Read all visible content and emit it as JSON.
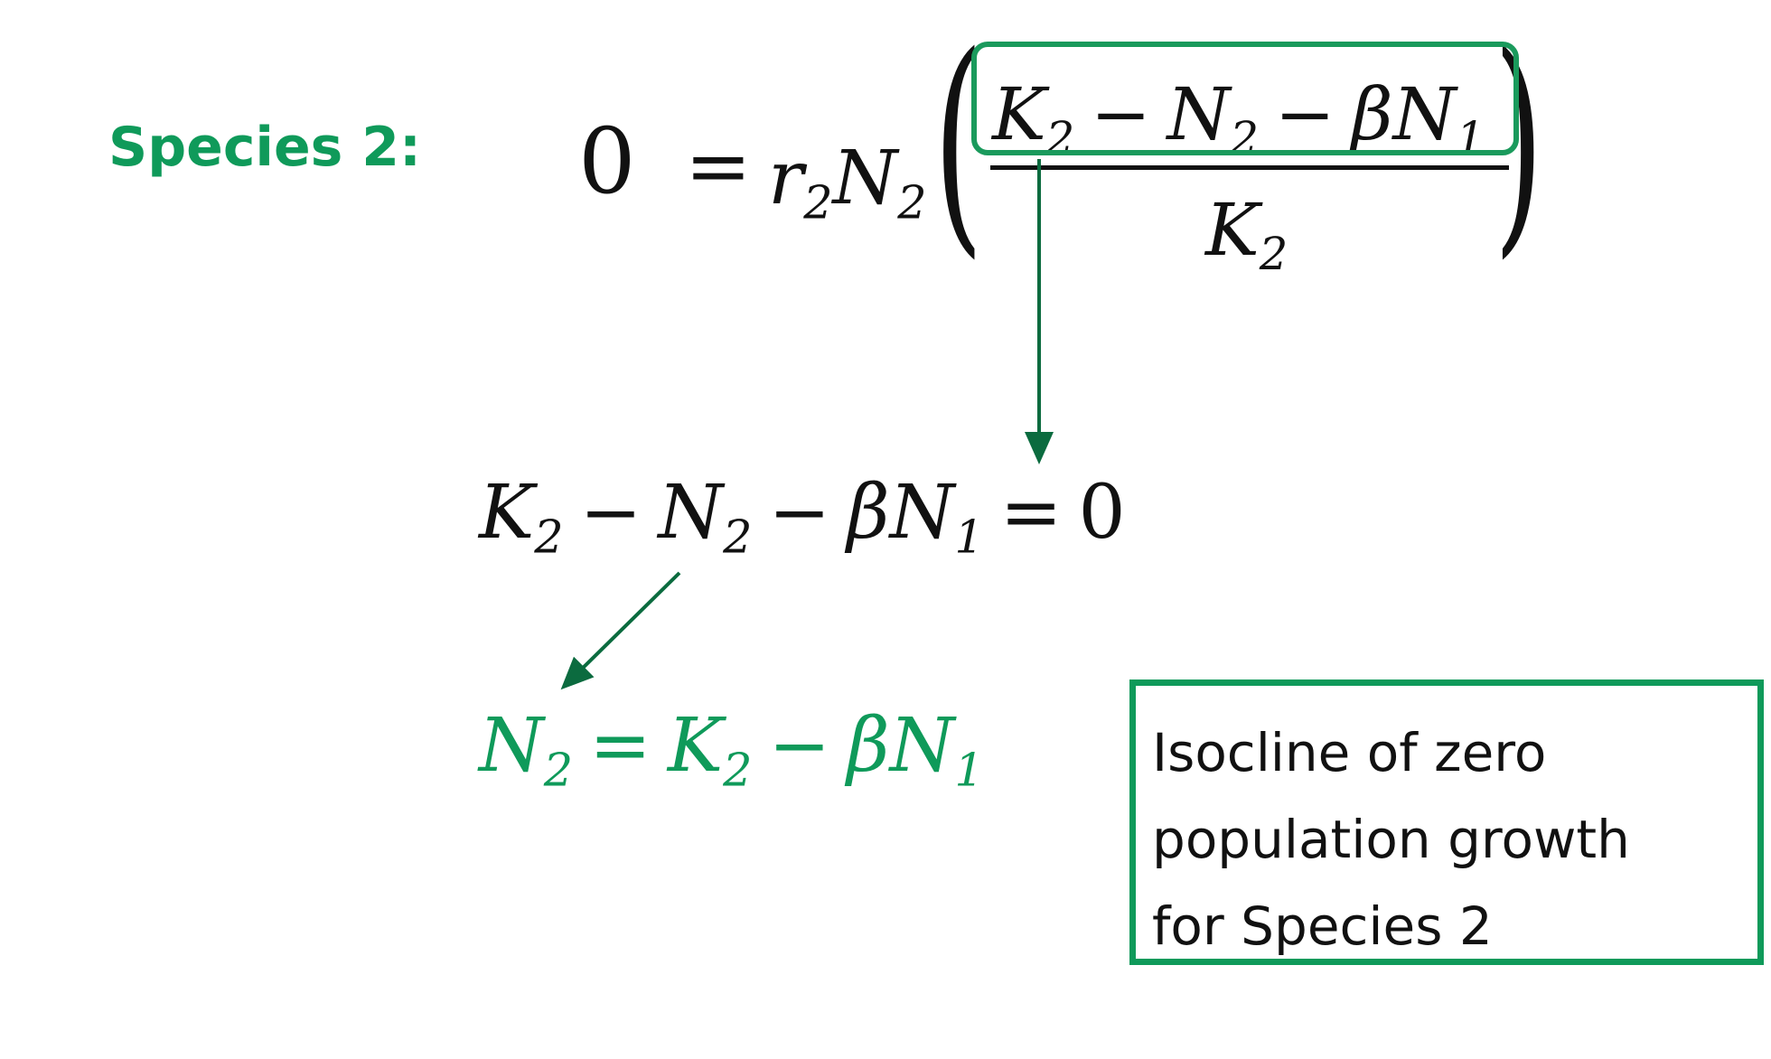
{
  "heading": "Species 2:",
  "equation1": {
    "lhs": "0",
    "equals": "=",
    "coef_r": "r",
    "coef_r_sub": "2",
    "coef_N": "N",
    "coef_N_sub": "2",
    "numerator": {
      "t1": "K",
      "t1_sub": "2",
      "minus1": "−",
      "t2": "N",
      "t2_sub": "2",
      "minus2": "−",
      "t3": "βN",
      "t3_sub": "1"
    },
    "denominator": {
      "t": "K",
      "t_sub": "2"
    }
  },
  "equation2": {
    "t1": "K",
    "t1_sub": "2",
    "minus1": "−",
    "t2": "N",
    "t2_sub": "2",
    "minus2": "−",
    "t3": "βN",
    "t3_sub": "1",
    "equals": "=",
    "rhs": "0"
  },
  "equation3": {
    "t1": "N",
    "t1_sub": "2",
    "equals": "=",
    "t2": "K",
    "t2_sub": "2",
    "minus": "−",
    "t3": "βN",
    "t3_sub": "1"
  },
  "note": {
    "lines": [
      "Isocline of zero",
      "population growth",
      "for Species 2"
    ]
  },
  "colors": {
    "accent_green": "#0f9a5a",
    "box_green": "#1a9a5c",
    "arrow_green": "#0b6b3f",
    "text": "#111111"
  }
}
